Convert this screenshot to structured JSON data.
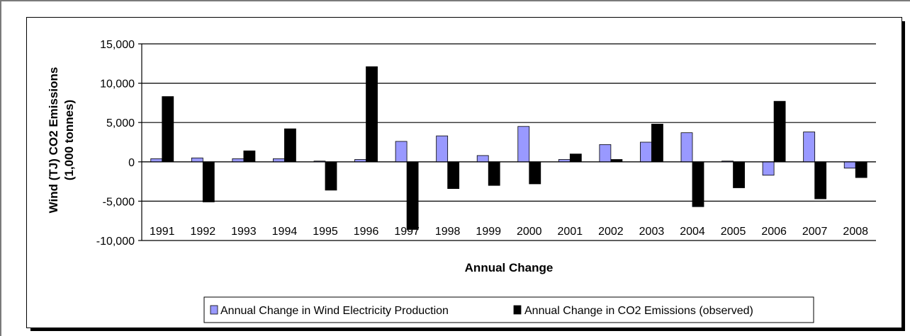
{
  "chart_data": {
    "type": "bar",
    "title": "",
    "xlabel": "Annual Change",
    "ylabel_lines": [
      "Wind (TJ) CO2 Emissions",
      "(1,000 tonnes)"
    ],
    "ylim": [
      -10000,
      15000
    ],
    "yticks": [
      15000,
      10000,
      5000,
      0,
      -5000,
      -10000
    ],
    "ytick_labels": [
      "15,000",
      "10,000",
      "5,000",
      "0",
      "-5,000",
      "-10,000"
    ],
    "grid": true,
    "legend_position": "bottom",
    "categories": [
      "1991",
      "1992",
      "1993",
      "1994",
      "1995",
      "1996",
      "1997",
      "1998",
      "1999",
      "2000",
      "2001",
      "2002",
      "2003",
      "2004",
      "2005",
      "2006",
      "2007",
      "2008"
    ],
    "series": [
      {
        "name": "Annual Change in Wind Electricity Production",
        "color": "#9999ff",
        "values": [
          400,
          500,
          400,
          400,
          100,
          300,
          2600,
          3300,
          800,
          4500,
          300,
          2200,
          2500,
          3700,
          100,
          -1700,
          3800,
          -800
        ]
      },
      {
        "name": "Annual Change in CO2 Emissions (observed)",
        "color": "#000000",
        "values": [
          8300,
          -5100,
          1400,
          4200,
          -3600,
          12100,
          -8600,
          -3400,
          -3000,
          -2800,
          1000,
          300,
          4800,
          -5700,
          -3300,
          7700,
          -4700,
          -2000
        ]
      }
    ]
  }
}
